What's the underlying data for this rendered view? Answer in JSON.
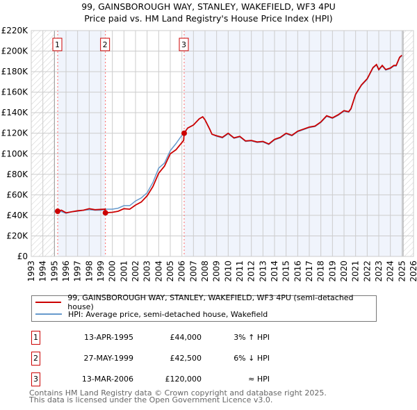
{
  "title_line1": "99, GAINSBOROUGH WAY, STANLEY, WAKEFIELD, WF3 4PU",
  "title_line2": "Price paid vs. HM Land Registry's House Price Index (HPI)",
  "chart_data": {
    "type": "line",
    "xlim": [
      1993,
      2026
    ],
    "ylim": [
      0,
      220000
    ],
    "x_ticks": [
      "1993",
      "1994",
      "1995",
      "1996",
      "1997",
      "1998",
      "1999",
      "2000",
      "2001",
      "2002",
      "2003",
      "2004",
      "2005",
      "2006",
      "2007",
      "2008",
      "2009",
      "2010",
      "2011",
      "2012",
      "2013",
      "2014",
      "2015",
      "2016",
      "2017",
      "2018",
      "2019",
      "2020",
      "2021",
      "2022",
      "2023",
      "2024",
      "2025",
      "2026"
    ],
    "y_ticks": [
      {
        "v": 0,
        "label": "£0"
      },
      {
        "v": 20000,
        "label": "£20K"
      },
      {
        "v": 40000,
        "label": "£40K"
      },
      {
        "v": 60000,
        "label": "£60K"
      },
      {
        "v": 80000,
        "label": "£80K"
      },
      {
        "v": 100000,
        "label": "£100K"
      },
      {
        "v": 120000,
        "label": "£120K"
      },
      {
        "v": 140000,
        "label": "£140K"
      },
      {
        "v": 160000,
        "label": "£160K"
      },
      {
        "v": 180000,
        "label": "£180K"
      },
      {
        "v": 200000,
        "label": "£200K"
      },
      {
        "v": 220000,
        "label": "£220K"
      }
    ],
    "grid": true,
    "data_range": [
      1995.0,
      2025.1
    ],
    "series": [
      {
        "name": "99, GAINSBOROUGH WAY, STANLEY, WAKEFIELD, WF3 4PU (semi-detached house)",
        "color": "#cc0000",
        "x": [
          1995.28,
          1995.6,
          1996,
          1996.5,
          1997,
          1997.5,
          1998,
          1998.5,
          1999.38,
          1999.41,
          2000,
          2000.5,
          2001,
          2001.5,
          2002,
          2002.5,
          2003,
          2003.5,
          2004,
          2004.5,
          2005,
          2005.5,
          2006.15,
          2006.2,
          2006.5,
          2007,
          2007.5,
          2007.8,
          2008,
          2008.4,
          2008.6,
          2009,
          2009.5,
          2010,
          2010.5,
          2011,
          2011.5,
          2012,
          2012.5,
          2013,
          2013.5,
          2014,
          2014.5,
          2015,
          2015.5,
          2016,
          2016.5,
          2017,
          2017.5,
          2018,
          2018.5,
          2019,
          2019.5,
          2020,
          2020.4,
          2020.6,
          2021,
          2021.5,
          2022,
          2022.5,
          2022.8,
          2023,
          2023.3,
          2023.6,
          2024,
          2024.3,
          2024.5,
          2024.8,
          2025.0
        ],
        "y": [
          44000,
          45000,
          42500,
          43500,
          44500,
          45000,
          46500,
          45500,
          46000,
          42500,
          43000,
          44000,
          46500,
          46000,
          50000,
          53000,
          59000,
          68000,
          81000,
          88000,
          100000,
          104000,
          113000,
          120000,
          125000,
          128000,
          134000,
          136000,
          133000,
          124000,
          119000,
          117500,
          116000,
          120000,
          115500,
          117000,
          112500,
          113000,
          111500,
          112000,
          109500,
          114000,
          116000,
          120000,
          118000,
          122000,
          124000,
          126000,
          127000,
          131000,
          137000,
          135000,
          138000,
          142000,
          141000,
          144000,
          158000,
          167000,
          173000,
          184000,
          187000,
          182000,
          186000,
          182000,
          183500,
          186000,
          186000,
          194000,
          196000
        ]
      },
      {
        "name": "HPI: Average price, semi-detached house, Wakefield",
        "color": "#6699cc",
        "x": [
          1995.0,
          1995.5,
          1996,
          1996.5,
          1997,
          1997.5,
          1998,
          1998.5,
          1999,
          1999.5,
          2000,
          2000.5,
          2001,
          2001.5,
          2002,
          2002.5,
          2003,
          2003.5,
          2004,
          2004.5,
          2005,
          2005.5,
          2006,
          2006.2,
          2006.5,
          2007,
          2007.5,
          2007.8,
          2008,
          2008.4,
          2008.6,
          2009,
          2009.5,
          2010,
          2010.5,
          2011,
          2011.5,
          2012,
          2012.5,
          2013,
          2013.5,
          2014,
          2014.5,
          2015,
          2015.5,
          2016,
          2016.5,
          2017,
          2017.5,
          2018,
          2018.5,
          2019,
          2019.5,
          2020,
          2020.4,
          2020.6,
          2021,
          2021.5,
          2022,
          2022.5,
          2022.8,
          2023,
          2023.3,
          2023.6,
          2024,
          2024.3,
          2024.5,
          2024.8,
          2025.0
        ],
        "y": [
          44000,
          44000,
          42000,
          43500,
          44000,
          45000,
          45500,
          45000,
          45000,
          46000,
          46000,
          47000,
          49500,
          49500,
          54000,
          57000,
          62000,
          72000,
          86000,
          91000,
          103000,
          110000,
          118000,
          120000,
          125000,
          128000,
          134000,
          136000,
          133000,
          124000,
          119000,
          117000,
          115500,
          119500,
          115000,
          116500,
          112000,
          112500,
          111000,
          111500,
          109000,
          113500,
          115500,
          119500,
          117500,
          121500,
          123500,
          125500,
          126500,
          130500,
          136500,
          134500,
          137500,
          141500,
          140500,
          143500,
          157500,
          166500,
          172500,
          183500,
          186500,
          181500,
          185500,
          181500,
          183000,
          185500,
          185500,
          193500,
          195500
        ]
      }
    ],
    "sales": [
      {
        "num": "1",
        "x": 1995.28,
        "price": 44000
      },
      {
        "num": "2",
        "x": 1999.4,
        "price": 42500
      },
      {
        "num": "3",
        "x": 2006.2,
        "price": 120000
      }
    ]
  },
  "legend": {
    "red": "99, GAINSBOROUGH WAY, STANLEY, WAKEFIELD, WF3 4PU (semi-detached house)",
    "blue": "HPI: Average price, semi-detached house, Wakefield"
  },
  "table": [
    {
      "num": "1",
      "date": "13-APR-1995",
      "price": "£44,000",
      "hpi": "3% ↑ HPI"
    },
    {
      "num": "2",
      "date": "27-MAY-1999",
      "price": "£42,500",
      "hpi": "6% ↓ HPI"
    },
    {
      "num": "3",
      "date": "13-MAR-2006",
      "price": "£120,000",
      "hpi": "≈ HPI"
    }
  ],
  "footer_line1": "Contains HM Land Registry data © Crown copyright and database right 2025.",
  "footer_line2": "This data is licensed under the Open Government Licence v3.0."
}
